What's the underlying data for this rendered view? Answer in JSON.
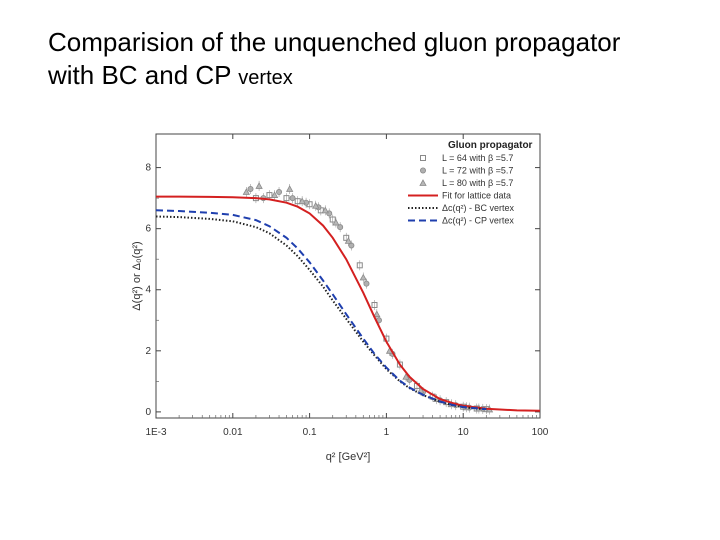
{
  "slide": {
    "title_line1": "Comparision of the unquenched gluon propagator",
    "title_line2_main": "with BC and CP ",
    "title_line2_small": "vertex"
  },
  "chart_data": {
    "type": "line",
    "title": "",
    "xlabel": "q² [GeV²]",
    "ylabel": "Δ(q²) or Δ₀(q²)",
    "x_scale": "log",
    "xlim": [
      0.001,
      100
    ],
    "ylim": [
      -0.2,
      9.1
    ],
    "x_tick_values": [
      0.001,
      0.01,
      0.1,
      1,
      10,
      100
    ],
    "x_tick_labels": [
      "1E-3",
      "0.01",
      "0.1",
      "1",
      "10",
      "100"
    ],
    "y_tick_values": [
      0,
      2,
      4,
      6,
      8
    ],
    "y_tick_labels": [
      "0",
      "2",
      "4",
      "6",
      "8"
    ],
    "grid": false,
    "legend_placement": "top-right",
    "legend_title": "Gluon propagator",
    "series": [
      {
        "name": "L = 64 with β =5.7",
        "kind": "markers",
        "marker": "square",
        "color": "#8a8a8a",
        "x": [
          0.02,
          0.03,
          0.05,
          0.07,
          0.1,
          0.14,
          0.2,
          0.3,
          0.45,
          0.7,
          1.0,
          1.5,
          2.5,
          4.0,
          6.0,
          10,
          15,
          20
        ],
        "y": [
          7.0,
          7.1,
          7.0,
          6.9,
          6.8,
          6.6,
          6.3,
          5.7,
          4.8,
          3.5,
          2.4,
          1.55,
          0.85,
          0.5,
          0.32,
          0.17,
          0.11,
          0.09
        ]
      },
      {
        "name": "L = 72 with β =5.7",
        "kind": "markers",
        "marker": "circle",
        "color": "#8a8a8a",
        "x": [
          0.017,
          0.025,
          0.04,
          0.06,
          0.09,
          0.13,
          0.18,
          0.25,
          0.35,
          0.55,
          0.8,
          1.2,
          2.0,
          3.0,
          5.0,
          8.0,
          12,
          18
        ],
        "y": [
          7.3,
          7.0,
          7.2,
          7.0,
          6.85,
          6.7,
          6.5,
          6.05,
          5.45,
          4.2,
          3.0,
          1.9,
          1.05,
          0.65,
          0.38,
          0.22,
          0.14,
          0.1
        ]
      },
      {
        "name": "L = 80 with β =5.7",
        "kind": "markers",
        "marker": "triangle",
        "color": "#8a8a8a",
        "x": [
          0.015,
          0.022,
          0.035,
          0.055,
          0.08,
          0.12,
          0.16,
          0.22,
          0.32,
          0.5,
          0.75,
          1.1,
          1.8,
          2.8,
          4.5,
          7.0,
          11,
          16,
          22
        ],
        "y": [
          7.2,
          7.4,
          7.1,
          7.3,
          6.9,
          6.75,
          6.6,
          6.2,
          5.6,
          4.4,
          3.2,
          2.0,
          1.15,
          0.7,
          0.42,
          0.25,
          0.15,
          0.11,
          0.08
        ]
      },
      {
        "name": "Fit for lattice data",
        "kind": "line",
        "style": "solid",
        "color": "#d42020",
        "x": [
          0.001,
          0.002,
          0.005,
          0.01,
          0.02,
          0.03,
          0.05,
          0.07,
          0.1,
          0.15,
          0.2,
          0.3,
          0.5,
          0.7,
          1.0,
          1.5,
          2,
          3,
          5,
          7,
          10,
          20,
          50,
          100
        ],
        "y": [
          7.05,
          7.05,
          7.04,
          7.03,
          7.0,
          6.96,
          6.85,
          6.72,
          6.5,
          6.1,
          5.7,
          5.0,
          3.9,
          3.1,
          2.3,
          1.55,
          1.15,
          0.75,
          0.42,
          0.3,
          0.2,
          0.1,
          0.05,
          0.04
        ]
      },
      {
        "name": "Δc(q²) - BC vertex",
        "kind": "line",
        "style": "dotted",
        "color": "#222222",
        "x": [
          0.001,
          0.002,
          0.005,
          0.01,
          0.02,
          0.03,
          0.05,
          0.07,
          0.1,
          0.15,
          0.2,
          0.3,
          0.5,
          0.7,
          1.0,
          1.5,
          2,
          3,
          5,
          7,
          10,
          20
        ],
        "y": [
          6.4,
          6.38,
          6.32,
          6.24,
          6.05,
          5.85,
          5.45,
          5.1,
          4.65,
          4.1,
          3.65,
          3.05,
          2.3,
          1.85,
          1.4,
          1.0,
          0.78,
          0.55,
          0.33,
          0.23,
          0.15,
          0.08
        ]
      },
      {
        "name": "Δc(q²) - CP vertex",
        "kind": "line",
        "style": "dashed",
        "color": "#1f3fae",
        "x": [
          0.001,
          0.002,
          0.005,
          0.01,
          0.02,
          0.03,
          0.05,
          0.07,
          0.1,
          0.15,
          0.2,
          0.3,
          0.5,
          0.7,
          1.0,
          1.5,
          2,
          3,
          5,
          7,
          10,
          20
        ],
        "y": [
          6.6,
          6.58,
          6.52,
          6.45,
          6.28,
          6.08,
          5.7,
          5.35,
          4.9,
          4.3,
          3.85,
          3.2,
          2.4,
          1.9,
          1.45,
          1.02,
          0.8,
          0.56,
          0.34,
          0.24,
          0.16,
          0.09
        ]
      }
    ]
  }
}
